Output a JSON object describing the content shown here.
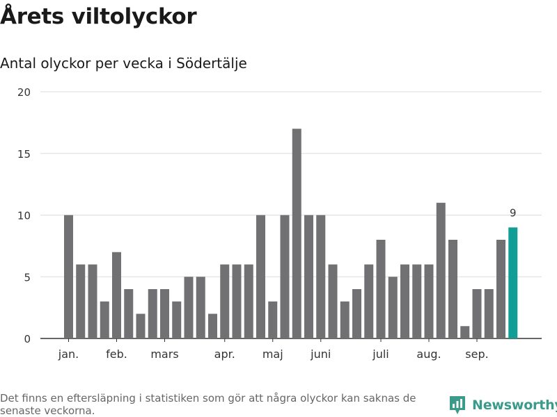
{
  "header": {
    "title": "Årets viltolyckor",
    "subtitle": "Antal olyckor per vecka i Södertälje"
  },
  "footer": {
    "note": "Det finns en eftersläpning i statistiken som gör att några olyckor kan saknas de senaste veckorna.",
    "brand": "Newsworthy"
  },
  "colors": {
    "bar": "#717073",
    "highlight": "#109e96",
    "grid": "#dddddd",
    "axis": "#333333",
    "brand": "#3a9b8a"
  },
  "chart_data": {
    "type": "bar",
    "title": "Antal olyckor per vecka i Södertälje",
    "xlabel": "",
    "ylabel": "",
    "ylim": [
      0,
      20
    ],
    "yticks": [
      0,
      5,
      10,
      15,
      20
    ],
    "grid": true,
    "weeks": [
      1,
      2,
      3,
      4,
      5,
      6,
      7,
      8,
      9,
      10,
      11,
      12,
      13,
      14,
      15,
      16,
      17,
      18,
      19,
      20,
      21,
      22,
      23,
      24,
      25,
      26,
      27,
      28,
      29,
      30,
      31,
      32,
      33,
      34,
      35,
      36,
      37,
      38
    ],
    "values": [
      10,
      6,
      6,
      3,
      7,
      4,
      2,
      4,
      4,
      3,
      5,
      5,
      2,
      6,
      6,
      6,
      10,
      3,
      10,
      17,
      10,
      10,
      6,
      3,
      4,
      6,
      8,
      5,
      6,
      6,
      6,
      11,
      8,
      1,
      4,
      4,
      8,
      9
    ],
    "month_labels": [
      {
        "label": "jan.",
        "week": 1
      },
      {
        "label": "feb.",
        "week": 5
      },
      {
        "label": "mars",
        "week": 9
      },
      {
        "label": "apr.",
        "week": 14
      },
      {
        "label": "maj",
        "week": 18
      },
      {
        "label": "juni",
        "week": 22
      },
      {
        "label": "juli",
        "week": 27
      },
      {
        "label": "aug.",
        "week": 31
      },
      {
        "label": "sep.",
        "week": 35
      }
    ],
    "highlight_index": 37,
    "highlight_label": "9"
  }
}
